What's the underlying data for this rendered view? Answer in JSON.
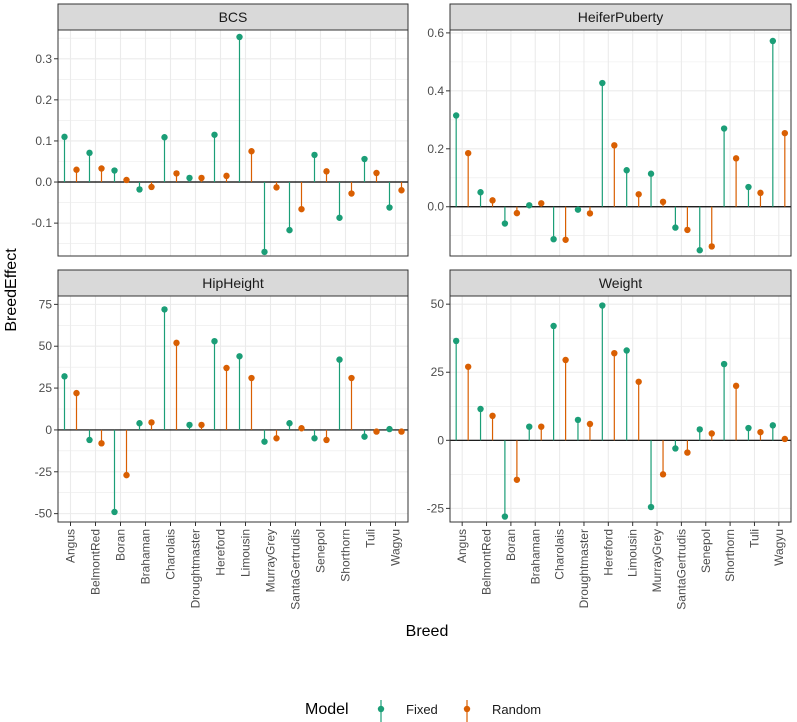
{
  "colors": {
    "Fixed": "#1b9e77",
    "Random": "#d95f02",
    "strip": "#d9d9d9",
    "grid": "#ebebeb",
    "panelBorder": "#333333"
  },
  "chart_data": {
    "type": "lollipop",
    "x_label": "Breed",
    "y_label": "BreedEffect",
    "legend_title": "Model",
    "legend_position": "bottom",
    "series_names": [
      "Fixed",
      "Random"
    ],
    "categories": [
      "Angus",
      "BelmontRed",
      "Boran",
      "Brahaman",
      "Charolais",
      "Droughtmaster",
      "Hereford",
      "Limousin",
      "MurrayGrey",
      "SantaGertrudis",
      "Senepol",
      "Shorthorn",
      "Tuli",
      "Wagyu"
    ],
    "panels": [
      {
        "title": "BCS",
        "ylim": [
          -0.18,
          0.37
        ],
        "yticks": [
          -0.1,
          0.0,
          0.1,
          0.2,
          0.3
        ],
        "ytick_labels": [
          "-0.1",
          "0.0",
          "0.1",
          "0.2",
          "0.3"
        ],
        "fixed": [
          0.11,
          0.071,
          0.028,
          -0.018,
          0.109,
          0.01,
          0.115,
          0.353,
          -0.17,
          -0.117,
          0.066,
          -0.087,
          0.056,
          -0.062
        ],
        "random": [
          0.03,
          0.033,
          0.005,
          -0.012,
          0.021,
          0.01,
          0.015,
          0.075,
          -0.013,
          -0.066,
          0.026,
          -0.028,
          0.022,
          -0.02
        ]
      },
      {
        "title": "HeiferPuberty",
        "ylim": [
          -0.17,
          0.61
        ],
        "yticks": [
          0.0,
          0.2,
          0.4,
          0.6
        ],
        "ytick_labels": [
          "0.0",
          "0.2",
          "0.4",
          "0.6"
        ],
        "fixed": [
          0.315,
          0.05,
          -0.058,
          0.005,
          -0.112,
          -0.01,
          0.427,
          0.126,
          0.114,
          -0.072,
          -0.15,
          0.27,
          0.068,
          0.572
        ],
        "random": [
          0.185,
          0.022,
          -0.022,
          0.012,
          -0.114,
          -0.023,
          0.212,
          0.043,
          0.017,
          -0.08,
          -0.137,
          0.167,
          0.048,
          0.254
        ]
      },
      {
        "title": "HipHeight",
        "ylim": [
          -55,
          80
        ],
        "yticks": [
          -50,
          -25,
          0,
          25,
          50,
          75
        ],
        "ytick_labels": [
          "-50",
          "-25",
          "0",
          "25",
          "50",
          "75"
        ],
        "fixed": [
          32,
          -6,
          -49,
          4,
          72,
          3,
          53,
          44,
          -7,
          4,
          -5,
          42,
          -4,
          0.5
        ],
        "random": [
          22,
          -8,
          -27,
          4.5,
          52,
          3,
          37,
          31,
          -5,
          1,
          -6,
          31,
          -1,
          -1
        ]
      },
      {
        "title": "Weight",
        "ylim": [
          -30,
          53
        ],
        "yticks": [
          -25,
          0,
          25,
          50
        ],
        "ytick_labels": [
          "-25",
          "0",
          "25",
          "50"
        ],
        "fixed": [
          36.5,
          11.5,
          -28,
          5,
          42,
          7.5,
          49.5,
          33,
          -24.5,
          -3,
          4,
          28,
          4.5,
          5.5
        ],
        "random": [
          27,
          9,
          -14.5,
          5,
          29.5,
          6,
          32,
          21.5,
          -12.5,
          -4.5,
          2.5,
          20,
          3,
          0.5
        ]
      }
    ]
  }
}
